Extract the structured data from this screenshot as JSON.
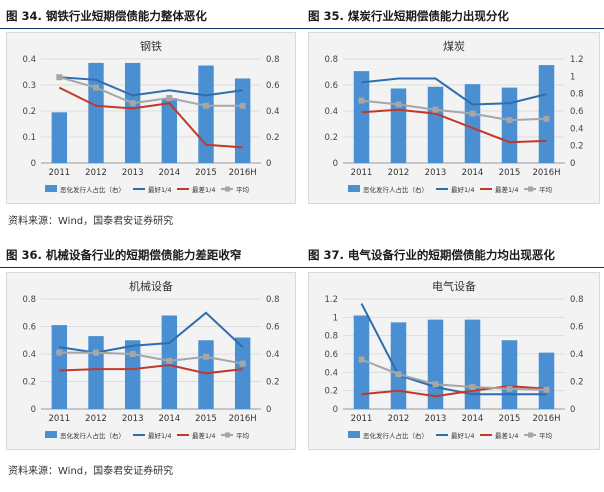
{
  "panels": [
    {
      "title": "图 34. 钢铁行业短期偿债能力整体恶化"
    },
    {
      "title": "图 35. 煤炭行业短期偿债能力出现分化"
    },
    {
      "title": "图 36. 机械设备行业的短期偿债能力差距收窄"
    },
    {
      "title": "图 37. 电气设备行业的短期偿债能力均出现恶化"
    }
  ],
  "source_text": "资料来源：Wind，国泰君安证券研究",
  "colors": {
    "bar": "#4a8fd1",
    "best": "#2e6db0",
    "worst": "#c0392b",
    "avg": "#a6a6a6",
    "header_rule": "#0d2f6b"
  },
  "chart_data": [
    {
      "type": "bar",
      "title": "钢铁",
      "categories": [
        "2011",
        "2012",
        "2013",
        "2014",
        "2015",
        "2016H"
      ],
      "left_axis": {
        "min": 0,
        "max": 0.4,
        "ticks": [
          "0",
          "0.1",
          "0.2",
          "0.3",
          "0.4"
        ]
      },
      "right_axis": {
        "min": 0,
        "max": 0.8,
        "ticks": [
          "0",
          "0.2",
          "0.4",
          "0.6",
          "0.8"
        ]
      },
      "series": [
        {
          "name": "恶化发行人占比（右）",
          "kind": "bar",
          "axis": "right",
          "values": [
            0.39,
            0.77,
            0.77,
            0.5,
            0.75,
            0.65
          ]
        },
        {
          "name": "最好1/4",
          "kind": "line",
          "axis": "left",
          "values": [
            0.33,
            0.32,
            0.26,
            0.28,
            0.26,
            0.28
          ]
        },
        {
          "name": "最差1/4",
          "kind": "line",
          "axis": "left",
          "values": [
            0.29,
            0.22,
            0.21,
            0.23,
            0.07,
            0.06
          ]
        },
        {
          "name": "平均",
          "kind": "line",
          "marker": true,
          "axis": "left",
          "values": [
            0.33,
            0.29,
            0.23,
            0.25,
            0.22,
            0.22
          ]
        }
      ],
      "legend": [
        "恶化发行人占比（右）",
        "最好1/4",
        "最差1/4",
        "平均"
      ]
    },
    {
      "type": "bar",
      "title": "煤炭",
      "categories": [
        "2011",
        "2012",
        "2013",
        "2014",
        "2015",
        "2016H"
      ],
      "left_axis": {
        "min": 0,
        "max": 0.8,
        "ticks": [
          "0",
          "0.2",
          "0.4",
          "0.6",
          "0.8"
        ]
      },
      "right_axis": {
        "min": 0,
        "max": 1.2,
        "ticks": [
          "0",
          "0.2",
          "0.4",
          "0.6",
          "0.8",
          "1",
          "1.2"
        ]
      },
      "series": [
        {
          "name": "恶化发行人占比（右）",
          "kind": "bar",
          "axis": "right",
          "values": [
            1.06,
            0.86,
            0.88,
            0.91,
            0.87,
            1.13
          ]
        },
        {
          "name": "最好1/4",
          "kind": "line",
          "axis": "left",
          "values": [
            0.62,
            0.65,
            0.65,
            0.45,
            0.46,
            0.53
          ]
        },
        {
          "name": "最差1/4",
          "kind": "line",
          "axis": "left",
          "values": [
            0.39,
            0.41,
            0.38,
            0.27,
            0.16,
            0.17
          ]
        },
        {
          "name": "平均",
          "kind": "line",
          "marker": true,
          "axis": "left",
          "values": [
            0.48,
            0.45,
            0.41,
            0.38,
            0.33,
            0.34
          ]
        }
      ],
      "legend": [
        "恶化发行人占比（右）",
        "最好1/4",
        "最差1/4",
        "平均"
      ]
    },
    {
      "type": "bar",
      "title": "机械设备",
      "categories": [
        "2011",
        "2012",
        "2013",
        "2014",
        "2015",
        "2016H"
      ],
      "left_axis": {
        "min": 0,
        "max": 0.8,
        "ticks": [
          "0",
          "0.2",
          "0.4",
          "0.6",
          "0.8"
        ]
      },
      "right_axis": {
        "min": 0,
        "max": 0.8,
        "ticks": [
          "0",
          "0.2",
          "0.4",
          "0.6",
          "0.8"
        ]
      },
      "series": [
        {
          "name": "恶化发行人占比（右）",
          "kind": "bar",
          "axis": "right",
          "values": [
            0.61,
            0.53,
            0.5,
            0.68,
            0.5,
            0.52
          ]
        },
        {
          "name": "最好1/4",
          "kind": "line",
          "axis": "left",
          "values": [
            0.45,
            0.41,
            0.46,
            0.48,
            0.7,
            0.45
          ]
        },
        {
          "name": "最差1/4",
          "kind": "line",
          "axis": "left",
          "values": [
            0.28,
            0.29,
            0.29,
            0.32,
            0.26,
            0.29
          ]
        },
        {
          "name": "平均",
          "kind": "line",
          "marker": true,
          "axis": "left",
          "values": [
            0.41,
            0.41,
            0.4,
            0.35,
            0.38,
            0.33
          ]
        }
      ],
      "legend": [
        "恶化发行人占比（右）",
        "最好1/4",
        "最差1/4",
        "平均"
      ]
    },
    {
      "type": "bar",
      "title": "电气设备",
      "categories": [
        "2011",
        "2012",
        "2013",
        "2014",
        "2015",
        "2016H"
      ],
      "left_axis": {
        "min": 0,
        "max": 1.2,
        "ticks": [
          "0",
          "0.2",
          "0.4",
          "0.6",
          "0.8",
          "1",
          "1.2"
        ]
      },
      "right_axis": {
        "min": 0,
        "max": 0.8,
        "ticks": [
          "0",
          "0.2",
          "0.4",
          "0.6",
          "0.8"
        ]
      },
      "series": [
        {
          "name": "恶化发行人占比（右）",
          "kind": "bar",
          "axis": "right",
          "values": [
            0.68,
            0.63,
            0.65,
            0.65,
            0.5,
            0.41
          ]
        },
        {
          "name": "最好1/4",
          "kind": "line",
          "axis": "left",
          "values": [
            1.15,
            0.37,
            0.24,
            0.16,
            0.16,
            0.16
          ]
        },
        {
          "name": "最差1/4",
          "kind": "line",
          "axis": "left",
          "values": [
            0.16,
            0.2,
            0.14,
            0.2,
            0.25,
            0.22
          ]
        },
        {
          "name": "平均",
          "kind": "line",
          "marker": true,
          "axis": "left",
          "values": [
            0.54,
            0.38,
            0.27,
            0.24,
            0.22,
            0.21
          ]
        }
      ],
      "legend": [
        "恶化发行人占比（右）",
        "最好1/4",
        "最差1/4",
        "平均"
      ]
    }
  ]
}
